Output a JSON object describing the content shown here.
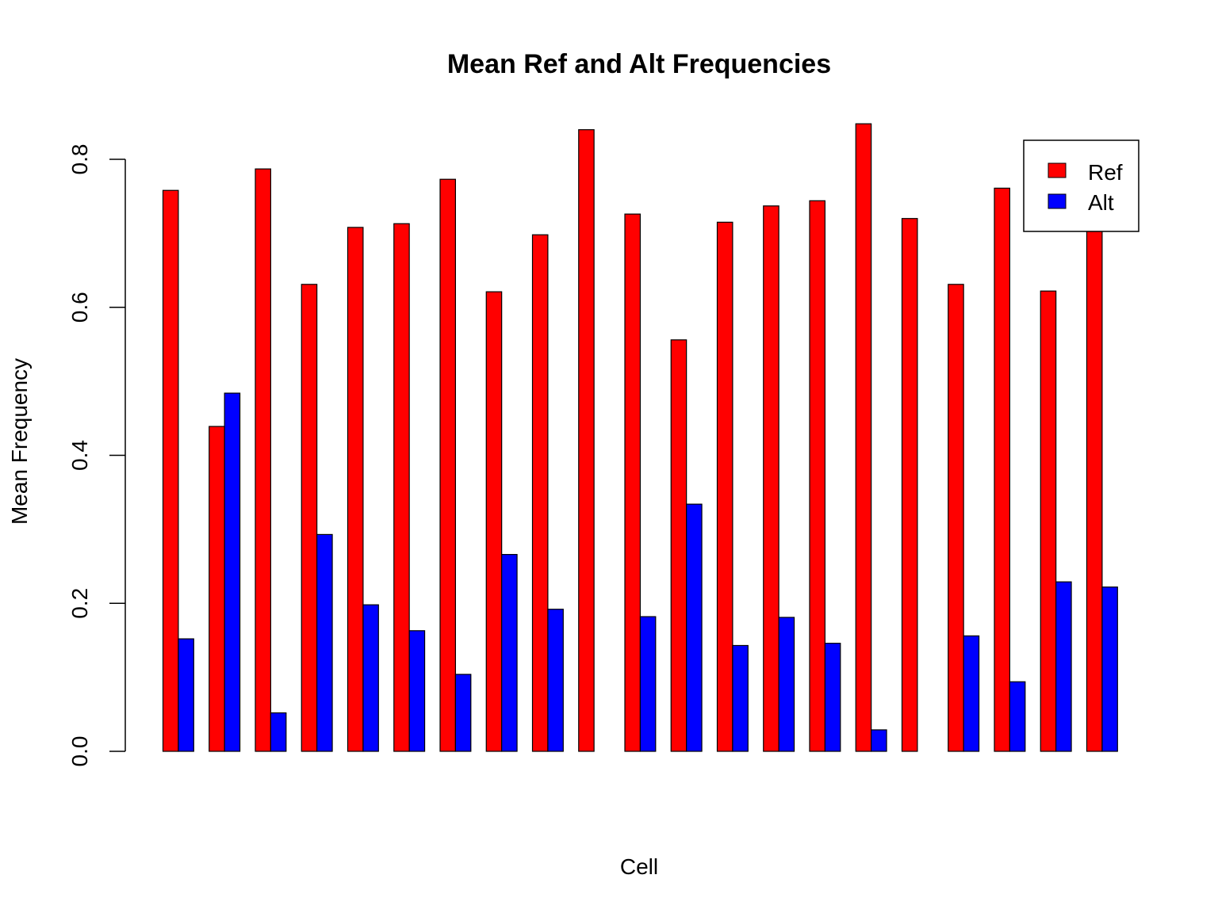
{
  "chart_data": {
    "type": "bar",
    "title": "Mean Ref and Alt Frequencies",
    "xlabel": "Cell",
    "ylabel": "Mean Frequency",
    "ylim": [
      0,
      0.85
    ],
    "yticks": [
      "0.0",
      "0.2",
      "0.4",
      "0.6",
      "0.8"
    ],
    "ytick_values": [
      0,
      0.2,
      0.4,
      0.6,
      0.8
    ],
    "grid": false,
    "legend_position": "top-right",
    "series": [
      {
        "name": "Ref",
        "color": "#ff0000",
        "values": [
          0.758,
          0.439,
          0.787,
          0.631,
          0.708,
          0.713,
          0.773,
          0.621,
          0.698,
          0.84,
          0.726,
          0.556,
          0.715,
          0.737,
          0.744,
          0.848,
          0.72,
          0.631,
          0.761,
          0.622,
          0.718
        ]
      },
      {
        "name": "Alt",
        "color": "#0000ff",
        "values": [
          0.152,
          0.484,
          0.052,
          0.293,
          0.198,
          0.163,
          0.104,
          0.266,
          0.192,
          0.0,
          0.182,
          0.334,
          0.143,
          0.181,
          0.146,
          0.029,
          0.0,
          0.156,
          0.094,
          0.229,
          0.222
        ]
      }
    ]
  }
}
